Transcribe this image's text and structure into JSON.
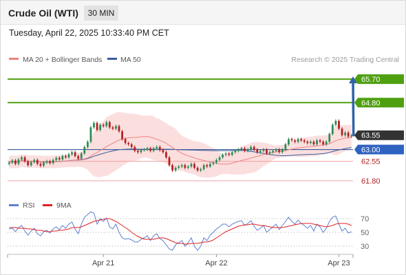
{
  "header": {
    "title": "Crude Oil (WTI)",
    "interval": "30 MIN"
  },
  "timestamp": "Tuesday, April 22, 2025 10:33:40 PM CET",
  "legend": {
    "ma20": "MA 20 + Bollinger Bands",
    "ma50": "MA 50",
    "credit": "Research © 2025 Trading Central"
  },
  "rsi_legend": {
    "rsi": "RSI",
    "ma9": "9MA"
  },
  "colors": {
    "up_candle": "#2e8b57",
    "down_candle": "#b22222",
    "ma20": "#f08080",
    "bollinger_fill": "#fbdcdc",
    "ma50": "#3a5a9a",
    "resistance": "#4fa010",
    "support": "#f0a0a0",
    "pivot": "#3a5a9a",
    "current_price_box": "#333333",
    "forecast_arrow": "#2f63a8",
    "rsi_line": "#5b7fd0",
    "rsi_ma": "#e02020"
  },
  "chart_data": [
    {
      "type": "candlestick",
      "title": "Crude Oil (WTI)",
      "interval": "30 MIN",
      "x_ticks": [
        "Apr 21",
        "Apr 22",
        "Apr 23"
      ],
      "ylim": [
        61.3,
        66.1
      ],
      "levels": [
        {
          "value": 65.7,
          "label": "65.70",
          "kind": "resistance"
        },
        {
          "value": 64.8,
          "label": "64.80",
          "kind": "resistance"
        },
        {
          "value": 63.55,
          "label": "63.55",
          "kind": "current"
        },
        {
          "value": 63.0,
          "label": "63.00",
          "kind": "pivot"
        },
        {
          "value": 62.55,
          "label": "62.55",
          "kind": "support"
        },
        {
          "value": 61.8,
          "label": "61.80",
          "kind": "support"
        }
      ],
      "forecast_target": 65.7,
      "close": [
        62.5,
        62.58,
        62.45,
        62.62,
        62.7,
        62.55,
        62.4,
        62.52,
        62.6,
        62.45,
        62.38,
        62.5,
        62.55,
        62.48,
        62.6,
        62.68,
        62.62,
        62.75,
        62.7,
        62.82,
        62.9,
        62.75,
        62.65,
        62.85,
        63.1,
        63.3,
        63.85,
        64.02,
        63.75,
        63.95,
        63.9,
        64.05,
        63.85,
        63.8,
        63.9,
        63.7,
        63.4,
        63.25,
        63.2,
        63.1,
        62.95,
        62.9,
        62.98,
        63.0,
        63.05,
        62.95,
        63.05,
        63.1,
        62.98,
        62.9,
        62.7,
        62.4,
        62.2,
        62.3,
        62.35,
        62.4,
        62.3,
        62.35,
        62.45,
        62.3,
        62.2,
        62.25,
        62.4,
        62.35,
        62.45,
        62.5,
        62.6,
        62.7,
        62.8,
        62.85,
        62.8,
        62.9,
        62.95,
        63.0,
        63.05,
        62.95,
        63.0,
        63.1,
        63.0,
        62.9,
        62.95,
        63.0,
        62.85,
        62.9,
        62.95,
        63.0,
        62.9,
        63.0,
        63.2,
        63.4,
        63.35,
        63.3,
        63.4,
        63.35,
        63.3,
        63.25,
        63.3,
        63.2,
        63.35,
        63.3,
        63.2,
        63.3,
        63.6,
        63.95,
        64.1,
        63.8,
        63.55,
        63.65,
        63.5,
        63.55
      ]
    },
    {
      "type": "line",
      "title": "RSI",
      "series": [
        {
          "name": "RSI"
        },
        {
          "name": "9MA"
        }
      ],
      "yticks": [
        70,
        50,
        30
      ],
      "ylim": [
        20,
        80
      ],
      "rsi": [
        55,
        56,
        51,
        57,
        60,
        52,
        46,
        52,
        56,
        48,
        45,
        51,
        53,
        49,
        55,
        58,
        54,
        60,
        56,
        62,
        65,
        55,
        48,
        62,
        72,
        76,
        80,
        78,
        62,
        70,
        66,
        71,
        58,
        55,
        62,
        50,
        42,
        40,
        41,
        39,
        36,
        36,
        40,
        42,
        45,
        38,
        45,
        48,
        41,
        38,
        32,
        26,
        24,
        32,
        35,
        38,
        30,
        35,
        42,
        30,
        24,
        30,
        42,
        38,
        46,
        50,
        55,
        58,
        62,
        62,
        58,
        62,
        64,
        66,
        67,
        60,
        63,
        67,
        59,
        53,
        56,
        60,
        50,
        54,
        58,
        62,
        54,
        60,
        66,
        72,
        66,
        62,
        68,
        63,
        60,
        56,
        60,
        52,
        62,
        58,
        50,
        56,
        66,
        72,
        74,
        62,
        52,
        56,
        49,
        51
      ],
      "ma9": [
        57,
        57,
        57,
        56,
        56,
        56,
        55,
        55,
        54,
        53,
        53,
        52,
        51,
        51,
        52,
        52,
        53,
        53,
        54,
        55,
        57,
        57,
        57,
        58,
        60,
        62,
        64,
        66,
        67,
        68,
        69,
        70,
        70,
        68,
        66,
        63,
        60,
        57,
        54,
        50,
        47,
        44,
        42,
        40,
        40,
        40,
        40,
        41,
        42,
        42,
        41,
        39,
        37,
        35,
        34,
        34,
        33,
        33,
        34,
        34,
        34,
        35,
        36,
        36,
        37,
        39,
        42,
        45,
        48,
        51,
        53,
        55,
        57,
        59,
        60,
        61,
        61,
        62,
        62,
        61,
        60,
        60,
        59,
        58,
        57,
        57,
        57,
        57,
        58,
        59,
        60,
        61,
        62,
        63,
        63,
        63,
        63,
        62,
        61,
        60,
        59,
        58,
        59,
        60,
        62,
        63,
        63,
        63,
        62,
        60
      ]
    }
  ]
}
